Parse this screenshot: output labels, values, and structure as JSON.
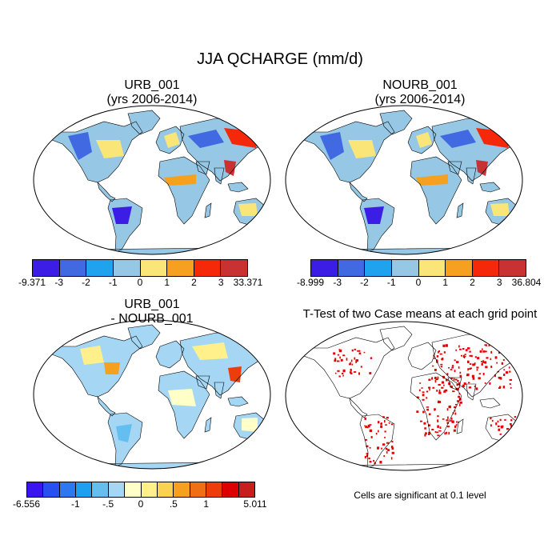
{
  "main_title": "JJA QCHARGE (mm/d)",
  "panels": [
    {
      "id": "urb",
      "title_line1": "URB_001",
      "title_line2": "(yrs 2006-2014)"
    },
    {
      "id": "nourb",
      "title_line1": "NOURB_001",
      "title_line2": "(yrs 2006-2014)"
    },
    {
      "id": "diff",
      "title_line1": "URB_001",
      "title_line2": "- NOURB_001"
    },
    {
      "id": "ttest",
      "title_line1": "T-Test of two Case means at each grid point",
      "title_line2": ""
    }
  ],
  "colorbars": {
    "urb": {
      "colors": [
        "#3c1de6",
        "#4169e1",
        "#1fa3ee",
        "#96c8e6",
        "#fae678",
        "#f5a01e",
        "#f5280a",
        "#c83232"
      ],
      "labels": [
        "-9.371",
        "-3",
        "-2",
        "-1",
        "0",
        "1",
        "2",
        "3",
        "33.371"
      ]
    },
    "nourb": {
      "colors": [
        "#3c1de6",
        "#4169e1",
        "#1fa3ee",
        "#96c8e6",
        "#fae678",
        "#f5a01e",
        "#f5280a",
        "#c83232"
      ],
      "labels": [
        "-8.999",
        "-3",
        "-2",
        "-1",
        "0",
        "1",
        "2",
        "3",
        "36.804"
      ]
    },
    "diff": {
      "colors": [
        "#3c14f0",
        "#2850f0",
        "#2d78f0",
        "#1ea0f0",
        "#64bef0",
        "#a5d7f5",
        "#ffffc8",
        "#fff08c",
        "#fad250",
        "#f5a01e",
        "#f06e14",
        "#ee3c0a",
        "#dc0000",
        "#c81e1e"
      ],
      "labels": [
        "-6.556",
        "-1",
        "-.5",
        "0",
        ".5",
        "1",
        "5.011"
      ],
      "label_positions": [
        0,
        3,
        5,
        7,
        9,
        11,
        14
      ]
    }
  },
  "significance_note": "Cells are significant at 0.1 level",
  "significance_color": "#e60000",
  "map_frame_color": "#000000"
}
